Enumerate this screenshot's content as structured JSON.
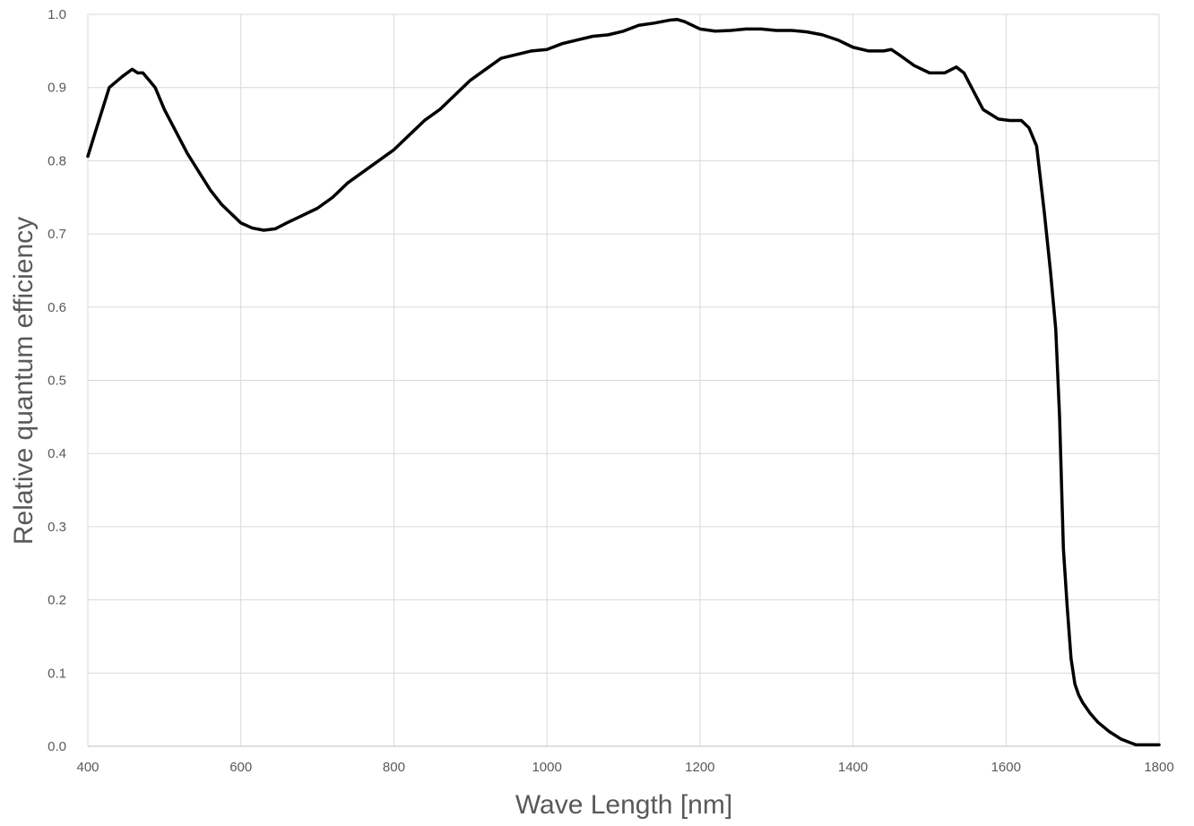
{
  "chart_data": {
    "type": "line",
    "title": "",
    "xlabel": "Wave Length [nm]",
    "ylabel": "Relative quantum efficiency",
    "xlim": [
      400,
      1800
    ],
    "ylim": [
      0.0,
      1.0
    ],
    "x_ticks": [
      "400",
      "600",
      "800",
      "1000",
      "1200",
      "1400",
      "1600",
      "1800"
    ],
    "y_ticks": [
      "0.0",
      "0.1",
      "0.2",
      "0.3",
      "0.4",
      "0.5",
      "0.6",
      "0.7",
      "0.8",
      "0.9",
      "1.0"
    ],
    "grid": true,
    "legend": "none",
    "series": [
      {
        "color": "#000000",
        "x": [
          400,
          410,
          428,
          445,
          458,
          465,
          472,
          480,
          488,
          500,
          515,
          530,
          545,
          560,
          575,
          590,
          600,
          615,
          630,
          645,
          660,
          680,
          700,
          720,
          740,
          760,
          780,
          800,
          820,
          840,
          860,
          880,
          900,
          920,
          940,
          960,
          980,
          1000,
          1020,
          1040,
          1060,
          1080,
          1100,
          1120,
          1140,
          1160,
          1170,
          1180,
          1200,
          1220,
          1240,
          1260,
          1280,
          1300,
          1320,
          1340,
          1360,
          1380,
          1400,
          1420,
          1440,
          1450,
          1460,
          1480,
          1500,
          1520,
          1535,
          1545,
          1555,
          1570,
          1590,
          1605,
          1620,
          1630,
          1640,
          1650,
          1658,
          1665,
          1670,
          1675,
          1680,
          1685,
          1690,
          1695,
          1700,
          1710,
          1720,
          1735,
          1750,
          1762,
          1770,
          1778,
          1800
        ],
        "y": [
          0.806,
          0.84,
          0.9,
          0.915,
          0.925,
          0.92,
          0.92,
          0.91,
          0.9,
          0.87,
          0.84,
          0.81,
          0.785,
          0.76,
          0.74,
          0.725,
          0.715,
          0.708,
          0.705,
          0.707,
          0.715,
          0.725,
          0.735,
          0.75,
          0.77,
          0.785,
          0.8,
          0.815,
          0.835,
          0.855,
          0.87,
          0.89,
          0.91,
          0.925,
          0.94,
          0.945,
          0.95,
          0.952,
          0.96,
          0.965,
          0.97,
          0.972,
          0.977,
          0.985,
          0.988,
          0.992,
          0.993,
          0.99,
          0.98,
          0.977,
          0.978,
          0.98,
          0.98,
          0.978,
          0.978,
          0.976,
          0.972,
          0.965,
          0.955,
          0.95,
          0.95,
          0.952,
          0.945,
          0.93,
          0.92,
          0.92,
          0.928,
          0.92,
          0.9,
          0.87,
          0.857,
          0.855,
          0.855,
          0.845,
          0.82,
          0.73,
          0.65,
          0.57,
          0.45,
          0.27,
          0.19,
          0.12,
          0.085,
          0.07,
          0.06,
          0.045,
          0.033,
          0.02,
          0.01,
          0.005,
          0.002,
          0.002,
          0.002
        ]
      }
    ]
  }
}
